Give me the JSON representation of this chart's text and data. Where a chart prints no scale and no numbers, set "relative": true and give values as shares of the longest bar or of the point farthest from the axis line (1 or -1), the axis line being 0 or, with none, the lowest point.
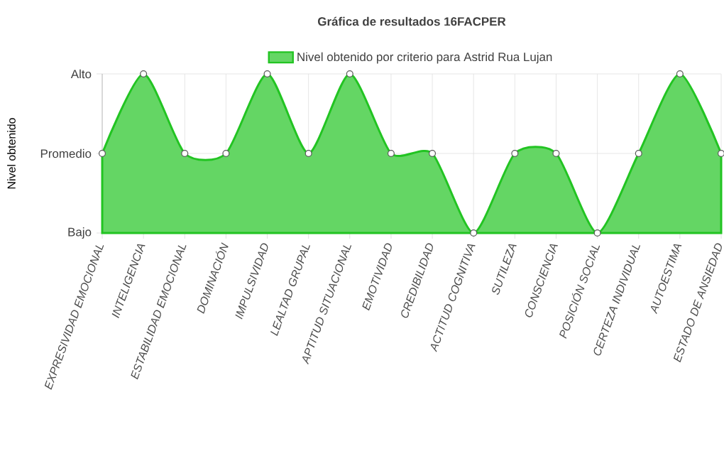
{
  "chart_data": {
    "type": "area",
    "title": "Gráfica de resultados 16FACPER",
    "ylabel": "Nivel obtenido",
    "categories": [
      "EXPRESIVIDAD EMOCIONAL",
      "INTELIGENCIA",
      "ESTABILIDAD EMOCIONAL",
      "DOMINACIÓN",
      "IMPULSIVIDAD",
      "LEALTAD GRUPAL",
      "APTITUD SITUACIONAL",
      "EMOTIVIDAD",
      "CREDIBILIDAD",
      "ACTITUD COGNITIVA",
      "SUTILEZA",
      "CONSCIENCIA",
      "POSICIÓN SOCIAL",
      "CERTEZA INDIVIDUAL",
      "AUTOESTIMA",
      "ESTADO DE ANSIEDAD"
    ],
    "series": [
      {
        "name": "Nivel obtenido por criterio para Astrid Rua Lujan",
        "color": "#22c422",
        "values": [
          0.5,
          1,
          0.5,
          0.5,
          1,
          0.5,
          1,
          0.5,
          0.5,
          0,
          0.5,
          0.5,
          0,
          0.5,
          1,
          0.5
        ]
      }
    ],
    "relative": true,
    "annotations": [
      "Bajo",
      "Promedio",
      "Alto"
    ],
    "grid": true,
    "legend": "top",
    "marker": "circle"
  }
}
